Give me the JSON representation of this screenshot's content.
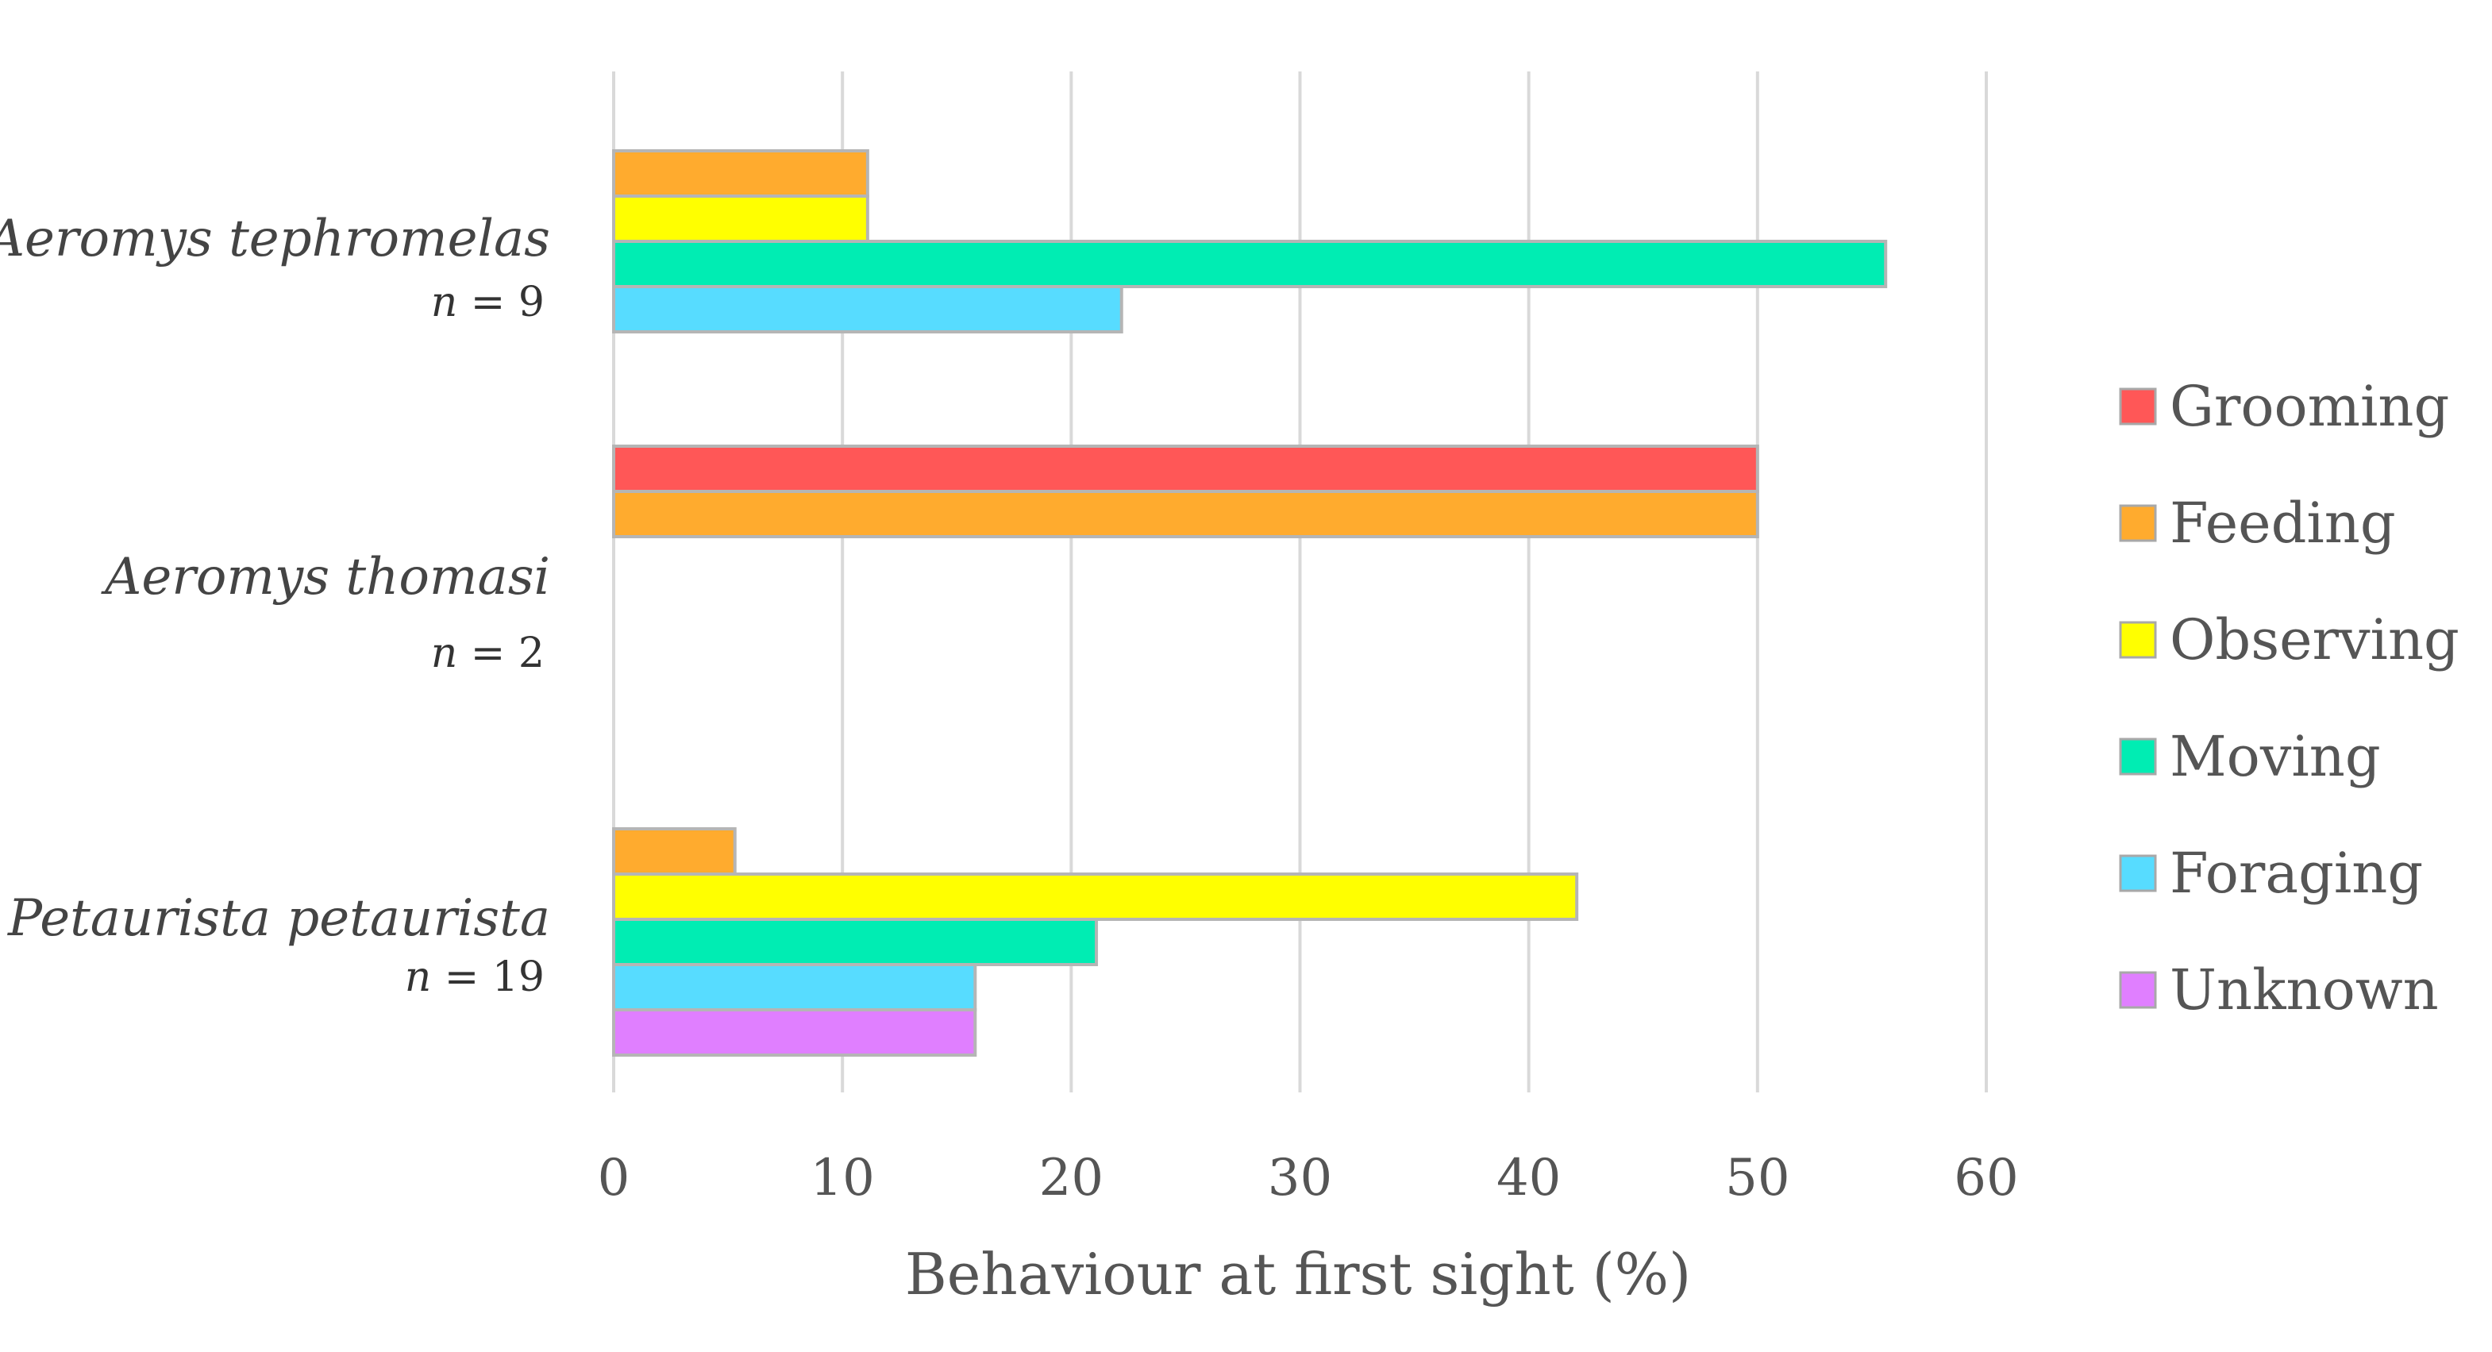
{
  "chart_data": {
    "type": "bar",
    "orientation": "horizontal",
    "title": "",
    "xlabel": "Behaviour at first sight (%)",
    "ylabel": "",
    "xlim": [
      0,
      60
    ],
    "xticks": [
      "0",
      "10",
      "20",
      "30",
      "40",
      "50",
      "60"
    ],
    "grid": true,
    "legend_position": "right",
    "categories": [
      {
        "name": "Aeromys tephromelas",
        "n_prefix": "n",
        "n_text": " = 9"
      },
      {
        "name": "Aeromys thomasi",
        "n_prefix": "n",
        "n_text": " = 2"
      },
      {
        "name": "Petaurista petaurista",
        "n_prefix": "n",
        "n_text": " = 19"
      }
    ],
    "series": [
      {
        "name": "Grooming",
        "color": "#ff5757",
        "values": [
          0,
          50,
          0
        ]
      },
      {
        "name": "Feeding",
        "color": "#ffab2e",
        "values": [
          11.1,
          50,
          5.3
        ]
      },
      {
        "name": "Observing",
        "color": "#ffff00",
        "values": [
          11.1,
          0,
          42.1
        ]
      },
      {
        "name": "Moving",
        "color": "#00edb3",
        "values": [
          55.6,
          0,
          21.1
        ]
      },
      {
        "name": "Foraging",
        "color": "#57dcff",
        "values": [
          22.2,
          0,
          15.8
        ]
      },
      {
        "name": "Unknown",
        "color": "#e07fff",
        "values": [
          0,
          0,
          15.8
        ]
      }
    ]
  }
}
